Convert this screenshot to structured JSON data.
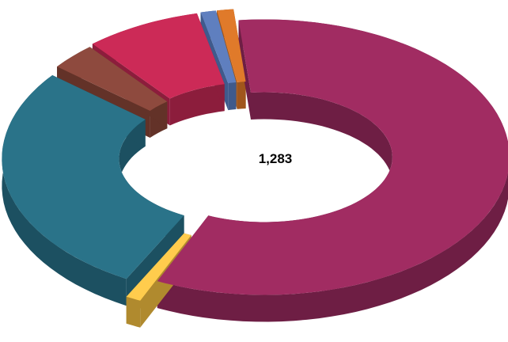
{
  "chart_data": {
    "type": "pie",
    "style": "3d-exploded-doughnut",
    "center_label": "1,283",
    "legend": "none",
    "slices": [
      {
        "value": 755,
        "color": "#A12C62",
        "side_color": "#6E1E44"
      },
      {
        "value": 13,
        "color": "#FFCC4D",
        "side_color": "#B08A2E"
      },
      {
        "value": 349,
        "color": "#2A7389",
        "side_color": "#1C5061"
      },
      {
        "value": 40,
        "color": "#8E4A3E",
        "side_color": "#633228"
      },
      {
        "value": 99,
        "color": "#CC2A57",
        "side_color": "#8C1D3C"
      },
      {
        "value": 13,
        "color": "#5F7FBF",
        "side_color": "#3F5A8C"
      },
      {
        "value": 14,
        "color": "#E07A2A",
        "side_color": "#A0561C"
      }
    ]
  }
}
